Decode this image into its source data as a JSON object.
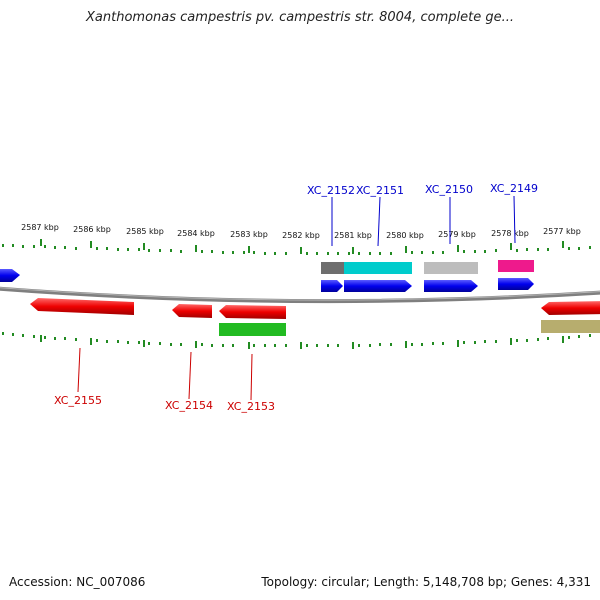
{
  "header": {
    "title": "Xanthomonas campestris pv. campestris str. 8004, complete ge..."
  },
  "footer": {
    "accession": "Accession: NC_007086",
    "summary": "Topology: circular; Length: 5,148,708 bp; Genes: 4,331"
  },
  "map": {
    "visible_range_kbp": [
      2576.4,
      2587.8
    ],
    "ticks": [
      "2587 kbp",
      "2586 kbp",
      "2585 kbp",
      "2584 kbp",
      "2583 kbp",
      "2582 kbp",
      "2581 kbp",
      "2580 kbp",
      "2579 kbp",
      "2578 kbp",
      "2577 kbp"
    ],
    "colors": {
      "backbone": "#808080",
      "tick": "#228b22",
      "forward_cds": "#0000ee",
      "reverse_cds": "#ee0000",
      "label_forward": "#0000cc",
      "label_reverse": "#cc0000",
      "cyan": "#00cccc",
      "gray": "#bdbdbd",
      "dark_gray": "#6e6e6e",
      "magenta": "#ee1a8c",
      "green": "#22bb22",
      "olive": "#b7ad6e"
    },
    "labels": {
      "forward": [
        "XC_2152",
        "XC_2151",
        "XC_2150",
        "XC_2149"
      ],
      "reverse": [
        "XC_2155",
        "XC_2154",
        "XC_2153"
      ]
    }
  }
}
